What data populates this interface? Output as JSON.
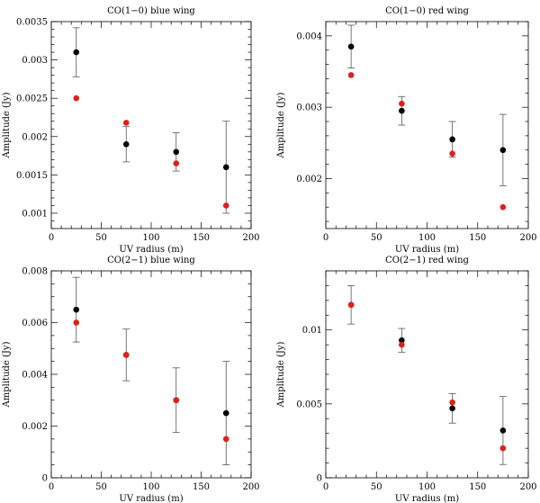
{
  "chart_data": [
    {
      "type": "scatter",
      "title": "CO(1−0) blue wing",
      "xlabel": "UV radius (m)",
      "ylabel": "Amplitude (Jy)",
      "xlim": [
        0,
        200
      ],
      "ylim": [
        0.0008,
        0.0035
      ],
      "xticks": [
        0,
        50,
        100,
        150,
        200
      ],
      "xtick_labels": [
        "0",
        "50",
        "100",
        "150",
        "200"
      ],
      "yticks": [
        0.001,
        0.0015,
        0.002,
        0.0025,
        0.003,
        0.0035
      ],
      "ytick_labels": [
        "0.001",
        "0.0015",
        "0.002",
        "0.0025",
        "0.003",
        "0.0035"
      ],
      "yminor": 0.0001,
      "series": [
        {
          "name": "black",
          "color": "#000000",
          "x": [
            25,
            75,
            125,
            175
          ],
          "y": [
            0.0031,
            0.0019,
            0.0018,
            0.0016
          ],
          "err": [
            0.00032,
            0.00023,
            0.00025,
            0.0006
          ]
        },
        {
          "name": "red",
          "color": "#e0201b",
          "x": [
            25,
            75,
            125,
            175
          ],
          "y": [
            0.0025,
            0.00218,
            0.00165,
            0.0011
          ]
        }
      ]
    },
    {
      "type": "scatter",
      "title": "CO(1−0) red wing",
      "xlabel": "UV radius (m)",
      "ylabel": "Amplitude (Jy)",
      "xlim": [
        0,
        200
      ],
      "ylim": [
        0.0013,
        0.0042
      ],
      "xticks": [
        0,
        50,
        100,
        150,
        200
      ],
      "xtick_labels": [
        "0",
        "50",
        "100",
        "150",
        "200"
      ],
      "yticks": [
        0.002,
        0.003,
        0.004
      ],
      "ytick_labels": [
        "0.002",
        "0.003",
        "0.004"
      ],
      "yminor": 0.0002,
      "series": [
        {
          "name": "black",
          "color": "#000000",
          "x": [
            25,
            75,
            125,
            175
          ],
          "y": [
            0.00385,
            0.00295,
            0.00255,
            0.0024
          ],
          "err": [
            0.0003,
            0.0002,
            0.00025,
            0.0005
          ]
        },
        {
          "name": "red",
          "color": "#e0201b",
          "x": [
            25,
            75,
            125,
            175
          ],
          "y": [
            0.00345,
            0.00305,
            0.00235,
            0.0016
          ]
        }
      ]
    },
    {
      "type": "scatter",
      "title": "CO(2−1) blue wing",
      "xlabel": "UV radius (m)",
      "ylabel": "Amplitude (Jy)",
      "xlim": [
        0,
        200
      ],
      "ylim": [
        0,
        0.008
      ],
      "xticks": [
        0,
        50,
        100,
        150,
        200
      ],
      "xtick_labels": [
        "0",
        "50",
        "100",
        "150",
        "200"
      ],
      "yticks": [
        0,
        0.002,
        0.004,
        0.006,
        0.008
      ],
      "ytick_labels": [
        "0",
        "0.002",
        "0.004",
        "0.006",
        "0.008"
      ],
      "yminor": 0.0005,
      "series": [
        {
          "name": "black",
          "color": "#000000",
          "x": [
            25,
            75,
            125,
            175
          ],
          "y": [
            0.0065,
            0.00475,
            0.003,
            0.0025
          ],
          "err": [
            0.00125,
            0.001,
            0.00125,
            0.002
          ]
        },
        {
          "name": "red",
          "color": "#e0201b",
          "x": [
            25,
            75,
            125,
            175
          ],
          "y": [
            0.006,
            0.00475,
            0.003,
            0.0015
          ]
        }
      ]
    },
    {
      "type": "scatter",
      "title": "CO(2−1) red wing",
      "xlabel": "UV radius (m)",
      "ylabel": "Amplitude (Jy)",
      "xlim": [
        0,
        200
      ],
      "ylim": [
        0,
        0.014
      ],
      "xticks": [
        0,
        50,
        100,
        150,
        200
      ],
      "xtick_labels": [
        "0",
        "50",
        "100",
        "150",
        "200"
      ],
      "yticks": [
        0,
        0.005,
        0.01
      ],
      "ytick_labels": [
        "0",
        "0.005",
        "0.01"
      ],
      "yminor": 0.001,
      "series": [
        {
          "name": "black",
          "color": "#000000",
          "x": [
            25,
            75,
            125,
            175
          ],
          "y": [
            0.0117,
            0.0093,
            0.0047,
            0.0032
          ],
          "err": [
            0.0013,
            0.0008,
            0.001,
            0.0023
          ]
        },
        {
          "name": "red",
          "color": "#e0201b",
          "x": [
            25,
            75,
            125,
            175
          ],
          "y": [
            0.0117,
            0.009,
            0.0051,
            0.002
          ]
        }
      ]
    }
  ]
}
